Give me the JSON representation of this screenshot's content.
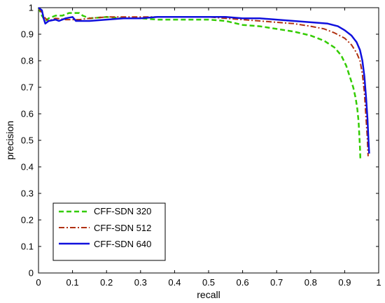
{
  "chart_data": {
    "type": "line",
    "title": "",
    "xlabel": "recall",
    "ylabel": "precision",
    "xlim": [
      0,
      1
    ],
    "ylim": [
      0,
      1
    ],
    "xticks": [
      "0",
      "0.1",
      "0.2",
      "0.3",
      "0.4",
      "0.5",
      "0.6",
      "0.7",
      "0.8",
      "0.9",
      "1"
    ],
    "yticks": [
      "0",
      "0.1",
      "0.2",
      "0.3",
      "0.4",
      "0.5",
      "0.6",
      "0.7",
      "0.8",
      "0.9",
      "1"
    ],
    "grid": false,
    "legend_position": "lower-left",
    "series": [
      {
        "name": "CFF-SDN 320",
        "color": "#33cc00",
        "style": "dashed",
        "points": [
          [
            0.0,
            1.0
          ],
          [
            0.01,
            0.97
          ],
          [
            0.02,
            0.95
          ],
          [
            0.03,
            0.96
          ],
          [
            0.05,
            0.97
          ],
          [
            0.07,
            0.97
          ],
          [
            0.09,
            0.98
          ],
          [
            0.12,
            0.98
          ],
          [
            0.13,
            0.97
          ],
          [
            0.15,
            0.96
          ],
          [
            0.2,
            0.965
          ],
          [
            0.25,
            0.96
          ],
          [
            0.3,
            0.96
          ],
          [
            0.35,
            0.955
          ],
          [
            0.4,
            0.955
          ],
          [
            0.45,
            0.955
          ],
          [
            0.5,
            0.955
          ],
          [
            0.55,
            0.95
          ],
          [
            0.6,
            0.935
          ],
          [
            0.65,
            0.93
          ],
          [
            0.7,
            0.92
          ],
          [
            0.75,
            0.91
          ],
          [
            0.8,
            0.895
          ],
          [
            0.84,
            0.875
          ],
          [
            0.87,
            0.85
          ],
          [
            0.89,
            0.82
          ],
          [
            0.905,
            0.78
          ],
          [
            0.915,
            0.74
          ],
          [
            0.925,
            0.7
          ],
          [
            0.932,
            0.66
          ],
          [
            0.937,
            0.62
          ],
          [
            0.941,
            0.57
          ],
          [
            0.943,
            0.52
          ],
          [
            0.945,
            0.47
          ],
          [
            0.946,
            0.43
          ]
        ]
      },
      {
        "name": "CFF-SDN 512",
        "color": "#b03010",
        "style": "dashdot",
        "points": [
          [
            0.0,
            1.0
          ],
          [
            0.01,
            0.98
          ],
          [
            0.02,
            0.96
          ],
          [
            0.03,
            0.95
          ],
          [
            0.05,
            0.96
          ],
          [
            0.08,
            0.955
          ],
          [
            0.12,
            0.955
          ],
          [
            0.15,
            0.96
          ],
          [
            0.2,
            0.965
          ],
          [
            0.25,
            0.965
          ],
          [
            0.3,
            0.965
          ],
          [
            0.35,
            0.965
          ],
          [
            0.4,
            0.965
          ],
          [
            0.45,
            0.965
          ],
          [
            0.5,
            0.965
          ],
          [
            0.55,
            0.96
          ],
          [
            0.6,
            0.955
          ],
          [
            0.65,
            0.95
          ],
          [
            0.7,
            0.945
          ],
          [
            0.75,
            0.94
          ],
          [
            0.8,
            0.93
          ],
          [
            0.84,
            0.92
          ],
          [
            0.87,
            0.905
          ],
          [
            0.9,
            0.885
          ],
          [
            0.92,
            0.86
          ],
          [
            0.935,
            0.83
          ],
          [
            0.945,
            0.8
          ],
          [
            0.952,
            0.75
          ],
          [
            0.958,
            0.68
          ],
          [
            0.962,
            0.6
          ],
          [
            0.966,
            0.52
          ],
          [
            0.969,
            0.44
          ]
        ]
      },
      {
        "name": "CFF-SDN 640",
        "color": "#1010dd",
        "style": "solid",
        "points": [
          [
            0.0,
            1.0
          ],
          [
            0.01,
            0.99
          ],
          [
            0.015,
            0.96
          ],
          [
            0.02,
            0.94
          ],
          [
            0.03,
            0.95
          ],
          [
            0.05,
            0.955
          ],
          [
            0.06,
            0.95
          ],
          [
            0.08,
            0.96
          ],
          [
            0.1,
            0.965
          ],
          [
            0.11,
            0.95
          ],
          [
            0.15,
            0.95
          ],
          [
            0.2,
            0.955
          ],
          [
            0.25,
            0.96
          ],
          [
            0.3,
            0.96
          ],
          [
            0.35,
            0.965
          ],
          [
            0.4,
            0.965
          ],
          [
            0.45,
            0.965
          ],
          [
            0.5,
            0.965
          ],
          [
            0.55,
            0.965
          ],
          [
            0.6,
            0.96
          ],
          [
            0.65,
            0.96
          ],
          [
            0.7,
            0.955
          ],
          [
            0.75,
            0.95
          ],
          [
            0.8,
            0.945
          ],
          [
            0.85,
            0.94
          ],
          [
            0.88,
            0.93
          ],
          [
            0.9,
            0.915
          ],
          [
            0.92,
            0.895
          ],
          [
            0.935,
            0.87
          ],
          [
            0.945,
            0.84
          ],
          [
            0.952,
            0.8
          ],
          [
            0.958,
            0.74
          ],
          [
            0.963,
            0.66
          ],
          [
            0.967,
            0.58
          ],
          [
            0.97,
            0.5
          ],
          [
            0.972,
            0.45
          ]
        ]
      }
    ]
  }
}
